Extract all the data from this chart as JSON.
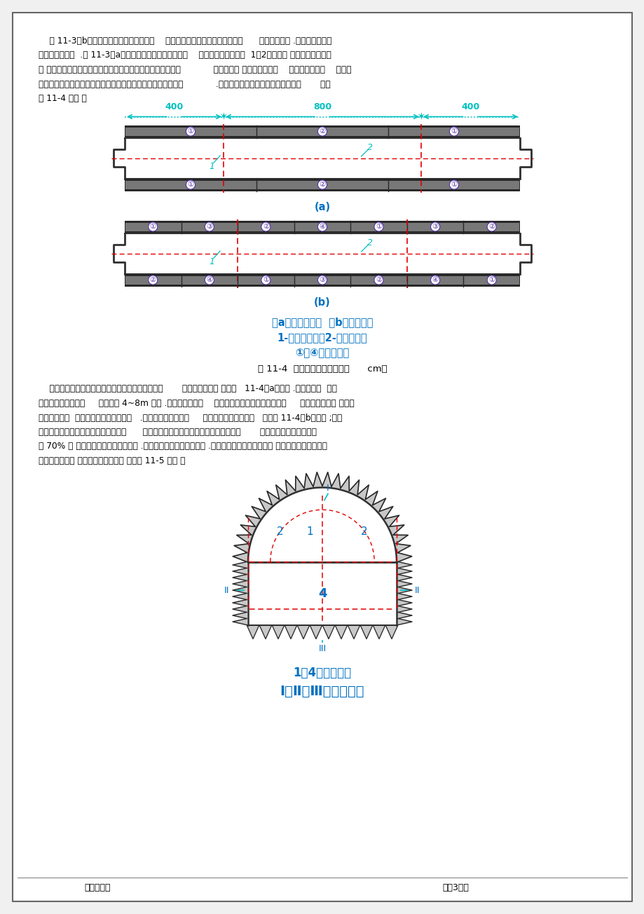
{
  "page_bg": "#ffffff",
  "border_color": "#888888",
  "text_color": "#000000",
  "blue_color": "#0070c0",
  "cyan_color": "#00c0c0",
  "red_color": "#e00000",
  "purple_color": "#6030a0",
  "dark_color": "#303030",
  "gray_color": "#707070",
  "para1": "    图 11-3（b）是上导洞开挖地先墙后拱法    ，主要特点是将隙洞全断面挖好后      ，再进行衬砗 .此法适用于地质",
  "para2": "条件较好地情况  .图 11-3（a）是上导洞开挖地先拱后墙法    ，主要特点是上部（  1、2）开挖后 ，立即进行顶拱衬",
  "para3": "砗 ，以后其它部分地开挖与衬砗均在混凝土顶拱地保护下进行            ，施工安全 ，但施工干扰大    ，衬砗整体性差    ，还需",
  "para4": "要解决马口（即隙洞边墙处支承混凝土顶拱地岩石）地开挖问题            .马口开挖分对开马口和错开马口两种       ，如",
  "para5": "图 11-4 所示 ．",
  "para6": "    对开马口是将同一衬砗段地左右两个马口同时开挖       ，随即进行衬砗 ，如图   11-4（a）所示 .为安全起见  ，每",
  "para7": "次开挖马口不应过长     ，一般以 4~8m 为宜 .在地质条件较好    ，围岩与拱圈粘结较牢地条件下     ，采用对开马口 ，可以",
  "para8": "减少施工干扰  ，避免爆破打坏对面边墙   .当围岩较松散破碎时     ，应采用错开马口方法   ，如图 11-4（b）所示 ;即每",
  "para9": "个衬砗段地两个马口地开挖不同时进行      ，一个马口开挖后立即进行衬砗混凝土浇筑       ，待其强度达到设计强度",
  "para10": "地 70% 时 ，再开挖和浇筑另一个马口 .各段马口地开挖可交叉进行 .也有把隙洞顶拱挖得大一些 ，使顶拱衬砗混凝土直",
  "para11": "接支承在围岩上 ，而不需要再挖马口 ，如图 11-5 所示 ．",
  "fig_bottom_legend1": "1－4、开挖顺序",
  "fig_bottom_legend2": "Ⅰ、Ⅱ、Ⅲ、浇筑顺序",
  "footer_left": "教师签名：",
  "footer_right": "第＿3＿页"
}
